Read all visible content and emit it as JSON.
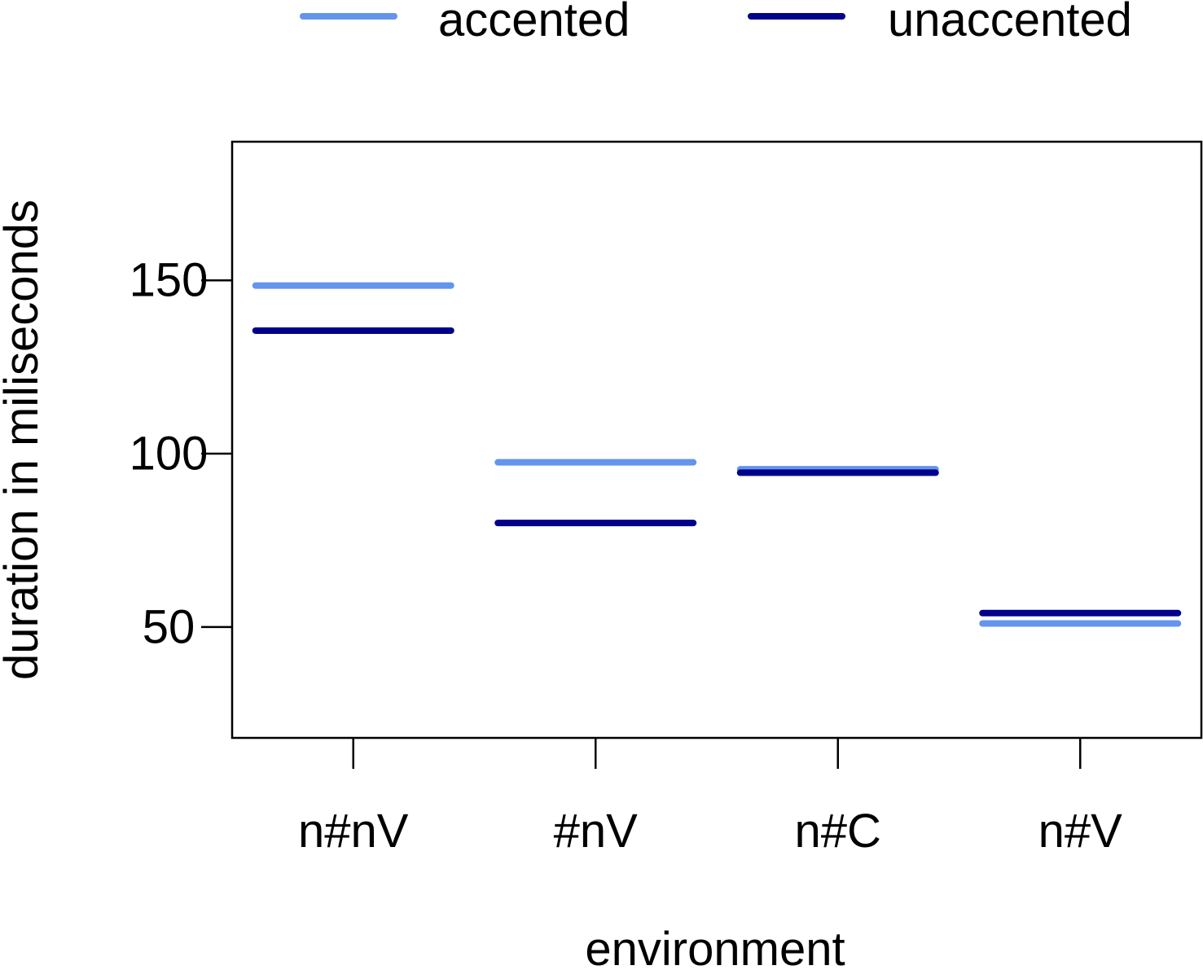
{
  "chart_data": {
    "type": "line",
    "xlabel": "environment",
    "ylabel": "duration in miliseconds",
    "categories": [
      "n#nV",
      "#nV",
      "n#C",
      "n#V"
    ],
    "ylim": [
      18,
      190
    ],
    "yticks": [
      50,
      100,
      150
    ],
    "grid": false,
    "legend_position": "top",
    "series": [
      {
        "name": "accented",
        "color": "#6495ED",
        "values": [
          148.5,
          97.5,
          95.5,
          51
        ]
      },
      {
        "name": "unaccented",
        "color": "#00008B",
        "values": [
          135.5,
          80,
          94.5,
          54
        ]
      }
    ]
  }
}
